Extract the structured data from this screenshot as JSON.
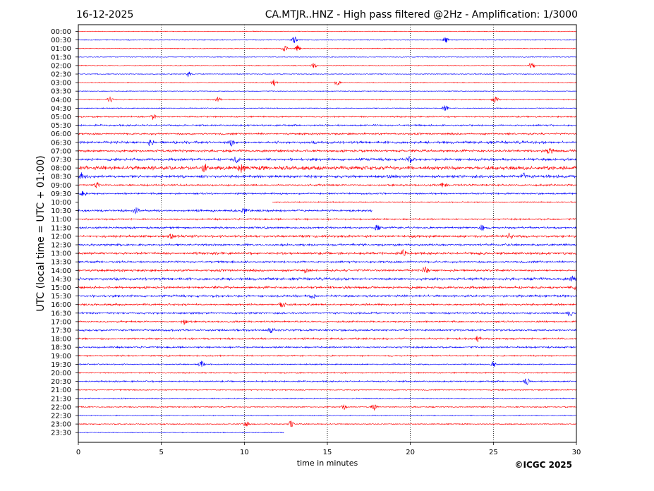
{
  "header": {
    "date": "16-12-2025",
    "title": "CA.MTJR..HNZ - High pass filtered @2Hz - Amplification: 1/3000"
  },
  "copyright": "©ICGC 2025",
  "chart_data": {
    "type": "line",
    "title": "CA.MTJR..HNZ - High pass filtered @2Hz - Amplification: 1/3000",
    "xlabel": "time in minutes",
    "ylabel": "UTC (local time = UTC + 01:00)",
    "xlim": [
      0,
      30
    ],
    "x_ticks": [
      0,
      5,
      10,
      15,
      20,
      25,
      30
    ],
    "vertical_gridlines": [
      5,
      10,
      15,
      20,
      25
    ],
    "grid_style": "dotted",
    "row_labels": [
      "00:00",
      "00:30",
      "01:00",
      "01:30",
      "02:00",
      "02:30",
      "03:00",
      "03:30",
      "04:00",
      "04:30",
      "05:00",
      "05:30",
      "06:00",
      "06:30",
      "07:00",
      "07:30",
      "08:00",
      "08:30",
      "09:00",
      "09:30",
      "10:00",
      "10:30",
      "11:00",
      "11:30",
      "12:00",
      "12:30",
      "13:00",
      "13:30",
      "14:00",
      "14:30",
      "15:00",
      "15:30",
      "16:00",
      "16:30",
      "17:00",
      "17:30",
      "18:00",
      "18:30",
      "19:00",
      "19:30",
      "20:00",
      "20:30",
      "21:00",
      "21:30",
      "22:00",
      "22:30",
      "23:00",
      "23:30"
    ],
    "trace_colors": [
      "#ff0000",
      "#0000ff"
    ],
    "trace_extents": [
      {
        "row": "10:00",
        "x_start": 11.7,
        "x_end": 30
      },
      {
        "row": "10:30",
        "x_start": 0,
        "x_end": 17.7
      },
      {
        "row": "23:30",
        "x_start": 0,
        "x_end": 12.4
      }
    ],
    "activity": [
      0.05,
      0.07,
      0.08,
      0.06,
      0.07,
      0.08,
      0.07,
      0.05,
      0.1,
      0.12,
      0.25,
      0.35,
      0.4,
      0.6,
      0.55,
      0.6,
      0.9,
      0.65,
      0.4,
      0.35,
      0.2,
      0.5,
      0.35,
      0.45,
      0.55,
      0.5,
      0.55,
      0.45,
      0.5,
      0.6,
      0.55,
      0.5,
      0.45,
      0.4,
      0.35,
      0.45,
      0.4,
      0.35,
      0.3,
      0.2,
      0.2,
      0.3,
      0.2,
      0.15,
      0.2,
      0.1,
      0.15,
      0.1
    ],
    "events": [
      {
        "row": "00:30",
        "x": 13.0
      },
      {
        "row": "00:30",
        "x": 22.1
      },
      {
        "row": "01:00",
        "x": 12.4
      },
      {
        "row": "01:00",
        "x": 13.2
      },
      {
        "row": "02:00",
        "x": 14.2
      },
      {
        "row": "02:00",
        "x": 27.3
      },
      {
        "row": "02:30",
        "x": 6.6
      },
      {
        "row": "03:00",
        "x": 11.8
      },
      {
        "row": "03:00",
        "x": 15.6
      },
      {
        "row": "04:00",
        "x": 1.9
      },
      {
        "row": "04:00",
        "x": 8.4
      },
      {
        "row": "04:00",
        "x": 25.1
      },
      {
        "row": "04:30",
        "x": 22.1
      },
      {
        "row": "05:00",
        "x": 4.5
      },
      {
        "row": "06:30",
        "x": 4.3
      },
      {
        "row": "06:30",
        "x": 9.2
      },
      {
        "row": "07:00",
        "x": 28.4
      },
      {
        "row": "07:30",
        "x": 9.5
      },
      {
        "row": "07:30",
        "x": 19.9
      },
      {
        "row": "08:00",
        "x": 7.6
      },
      {
        "row": "08:00",
        "x": 9.8
      },
      {
        "row": "08:30",
        "x": 0.2
      },
      {
        "row": "08:30",
        "x": 26.8
      },
      {
        "row": "09:00",
        "x": 1.1
      },
      {
        "row": "09:00",
        "x": 22.0
      },
      {
        "row": "09:30",
        "x": 0.3
      },
      {
        "row": "10:30",
        "x": 3.5
      },
      {
        "row": "10:30",
        "x": 10.0
      },
      {
        "row": "11:30",
        "x": 18.0
      },
      {
        "row": "11:30",
        "x": 24.3
      },
      {
        "row": "12:00",
        "x": 5.6
      },
      {
        "row": "12:00",
        "x": 26.0
      },
      {
        "row": "13:00",
        "x": 19.6
      },
      {
        "row": "14:00",
        "x": 13.7
      },
      {
        "row": "14:00",
        "x": 20.9
      },
      {
        "row": "14:30",
        "x": 29.8
      },
      {
        "row": "15:00",
        "x": 30.0
      },
      {
        "row": "15:30",
        "x": 14.1
      },
      {
        "row": "16:00",
        "x": 12.3
      },
      {
        "row": "16:30",
        "x": 29.6
      },
      {
        "row": "17:00",
        "x": 6.4
      },
      {
        "row": "17:30",
        "x": 11.6
      },
      {
        "row": "18:00",
        "x": 24.1
      },
      {
        "row": "19:30",
        "x": 7.4
      },
      {
        "row": "19:30",
        "x": 25.0
      },
      {
        "row": "20:30",
        "x": 27.0
      },
      {
        "row": "22:00",
        "x": 16.0
      },
      {
        "row": "22:00",
        "x": 17.8
      },
      {
        "row": "23:00",
        "x": 10.1
      },
      {
        "row": "23:00",
        "x": 12.8
      }
    ]
  }
}
